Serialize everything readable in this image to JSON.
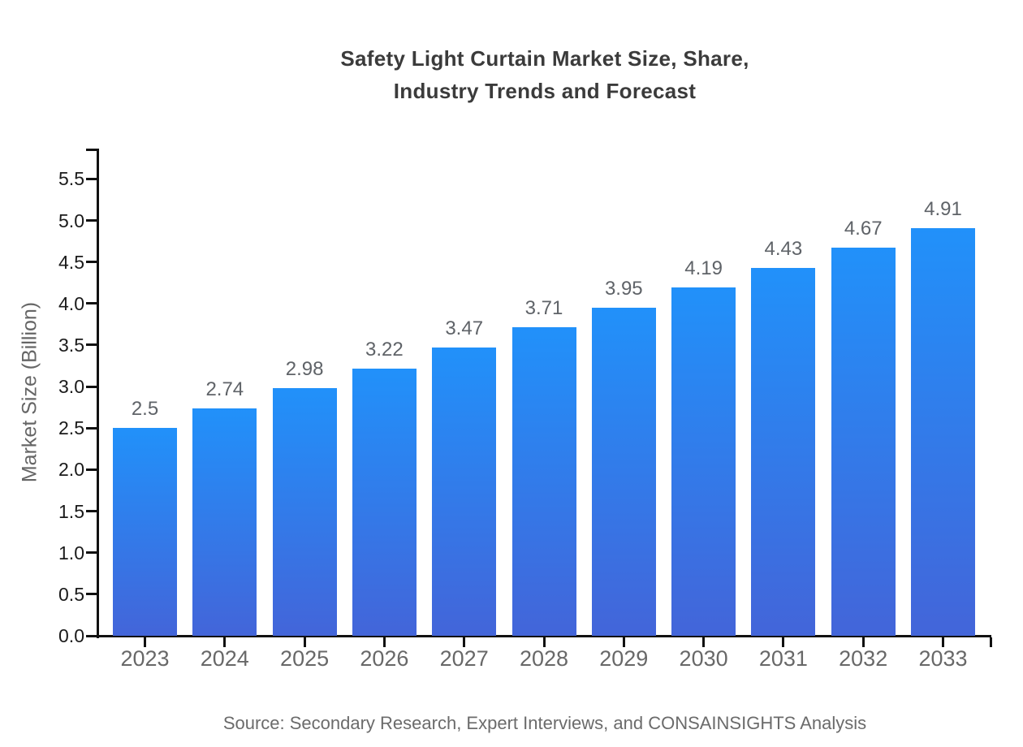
{
  "page": {
    "background": "#ffffff"
  },
  "header": {
    "title_line1": "Safety Light Curtain Market Size, Share,",
    "title_line2": "Industry Trends and Forecast"
  },
  "footer": {
    "source": "Source: Secondary Research, Expert Interviews, and CONSAINSIGHTS Analysis"
  },
  "chart_data": {
    "type": "bar",
    "title": "Safety Light Curtain Market Size, Share, Industry Trends and Forecast",
    "categories": [
      "2023",
      "2024",
      "2025",
      "2026",
      "2027",
      "2028",
      "2029",
      "2030",
      "2031",
      "2032",
      "2033"
    ],
    "values": [
      2.5,
      2.74,
      2.98,
      3.22,
      3.47,
      3.71,
      3.95,
      4.19,
      4.43,
      4.67,
      4.91
    ],
    "value_labels": [
      "2.5",
      "2.74",
      "2.98",
      "3.22",
      "3.47",
      "3.71",
      "3.95",
      "4.19",
      "4.43",
      "4.67",
      "4.91"
    ],
    "xlabel": "",
    "ylabel": "Market Size (Billion)",
    "ylim": [
      0,
      5.87
    ],
    "yticks": [
      0.0,
      0.5,
      1.0,
      1.5,
      2.0,
      2.5,
      3.0,
      3.5,
      4.0,
      4.5,
      5.0,
      5.5
    ],
    "ytick_labels": [
      "0.0",
      "0.5",
      "1.0",
      "1.5",
      "2.0",
      "2.5",
      "3.0",
      "3.5",
      "4.0",
      "4.5",
      "5.0",
      "5.5"
    ],
    "grid": false,
    "legend_position": "none",
    "colors": {
      "bar_gradient_top": "#2191fa",
      "bar_gradient_bottom": "#4365d9",
      "axis": "#111111",
      "ytick_label": "#1a1a1a",
      "category_label": "#686868",
      "value_label": "#5f6368",
      "title": "#3b3b3b",
      "ylabel": "#666666",
      "source": "#6b6b6b"
    }
  }
}
